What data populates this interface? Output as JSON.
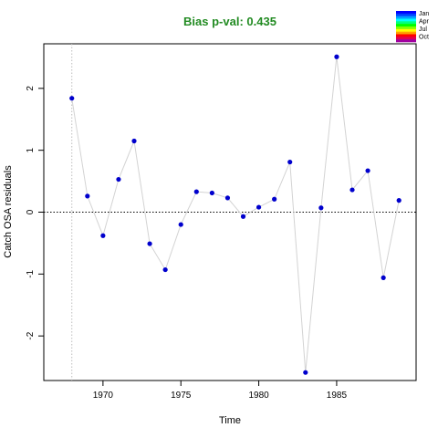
{
  "chart_data": {
    "type": "line",
    "title": "Bias p-val: 0.435",
    "title_color": "#228B22",
    "xlabel": "Time",
    "ylabel": "Catch OSA residuals",
    "xlim": [
      1966.2,
      1990.1
    ],
    "ylim": [
      -2.72,
      2.72
    ],
    "x_ticks": [
      1970,
      1975,
      1980,
      1985
    ],
    "y_ticks": [
      -2,
      -1,
      0,
      1,
      2
    ],
    "x_tick_labels": [
      "1970",
      "1975",
      "1980",
      "1985"
    ],
    "y_tick_labels": [
      "-2",
      "-1",
      "0",
      "1",
      "2"
    ],
    "line_color": "#D3D3D3",
    "point_color": "#0000CD",
    "reference_line_y": 0,
    "vertical_marker_x": 1968,
    "x": [
      1968,
      1969,
      1970,
      1971,
      1972,
      1973,
      1974,
      1975,
      1976,
      1977,
      1978,
      1979,
      1980,
      1981,
      1982,
      1983,
      1984,
      1985,
      1986,
      1987,
      1988,
      1989
    ],
    "y": [
      1.84,
      0.26,
      -0.38,
      0.53,
      1.15,
      -0.51,
      -0.93,
      -0.2,
      0.33,
      0.31,
      0.23,
      -0.07,
      0.08,
      0.21,
      0.81,
      -2.59,
      0.07,
      2.51,
      0.36,
      0.67,
      -1.06,
      0.19
    ],
    "legend": {
      "placement": "top-right",
      "entries": [
        "Jan",
        "Apr",
        "Jul",
        "Oct"
      ],
      "colors": [
        "#0000FF",
        "#0044FF",
        "#00A0FF",
        "#00FFFF",
        "#00FF80",
        "#00FF00",
        "#80FF00",
        "#FFFF00",
        "#FFA000",
        "#FF0000",
        "#E00050",
        "#A000A0"
      ]
    },
    "grid": false
  }
}
